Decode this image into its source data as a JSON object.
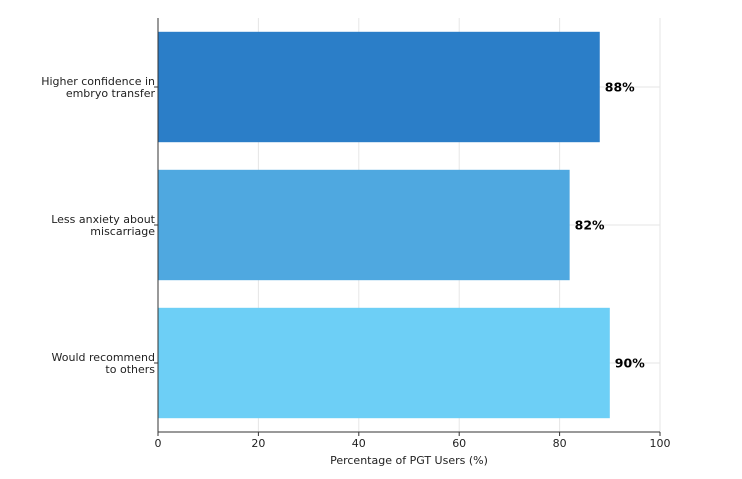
{
  "chart_data": {
    "type": "bar",
    "orientation": "horizontal",
    "categories": [
      [
        "Higher confidence in",
        "embryo transfer"
      ],
      [
        "Less anxiety about",
        "miscarriage"
      ],
      [
        "Would recommend",
        "to others"
      ]
    ],
    "values": [
      88,
      82,
      90
    ],
    "value_labels": [
      "88%",
      "82%",
      "90%"
    ],
    "colors": [
      "#2b7ec8",
      "#4fa8e0",
      "#6dcff6"
    ],
    "xlabel": "Percentage of PGT Users (%)",
    "ylabel": "",
    "title": "",
    "xlim": [
      0,
      100
    ],
    "xticks": [
      0,
      20,
      40,
      60,
      80,
      100
    ],
    "grid": true,
    "legend": "none"
  }
}
